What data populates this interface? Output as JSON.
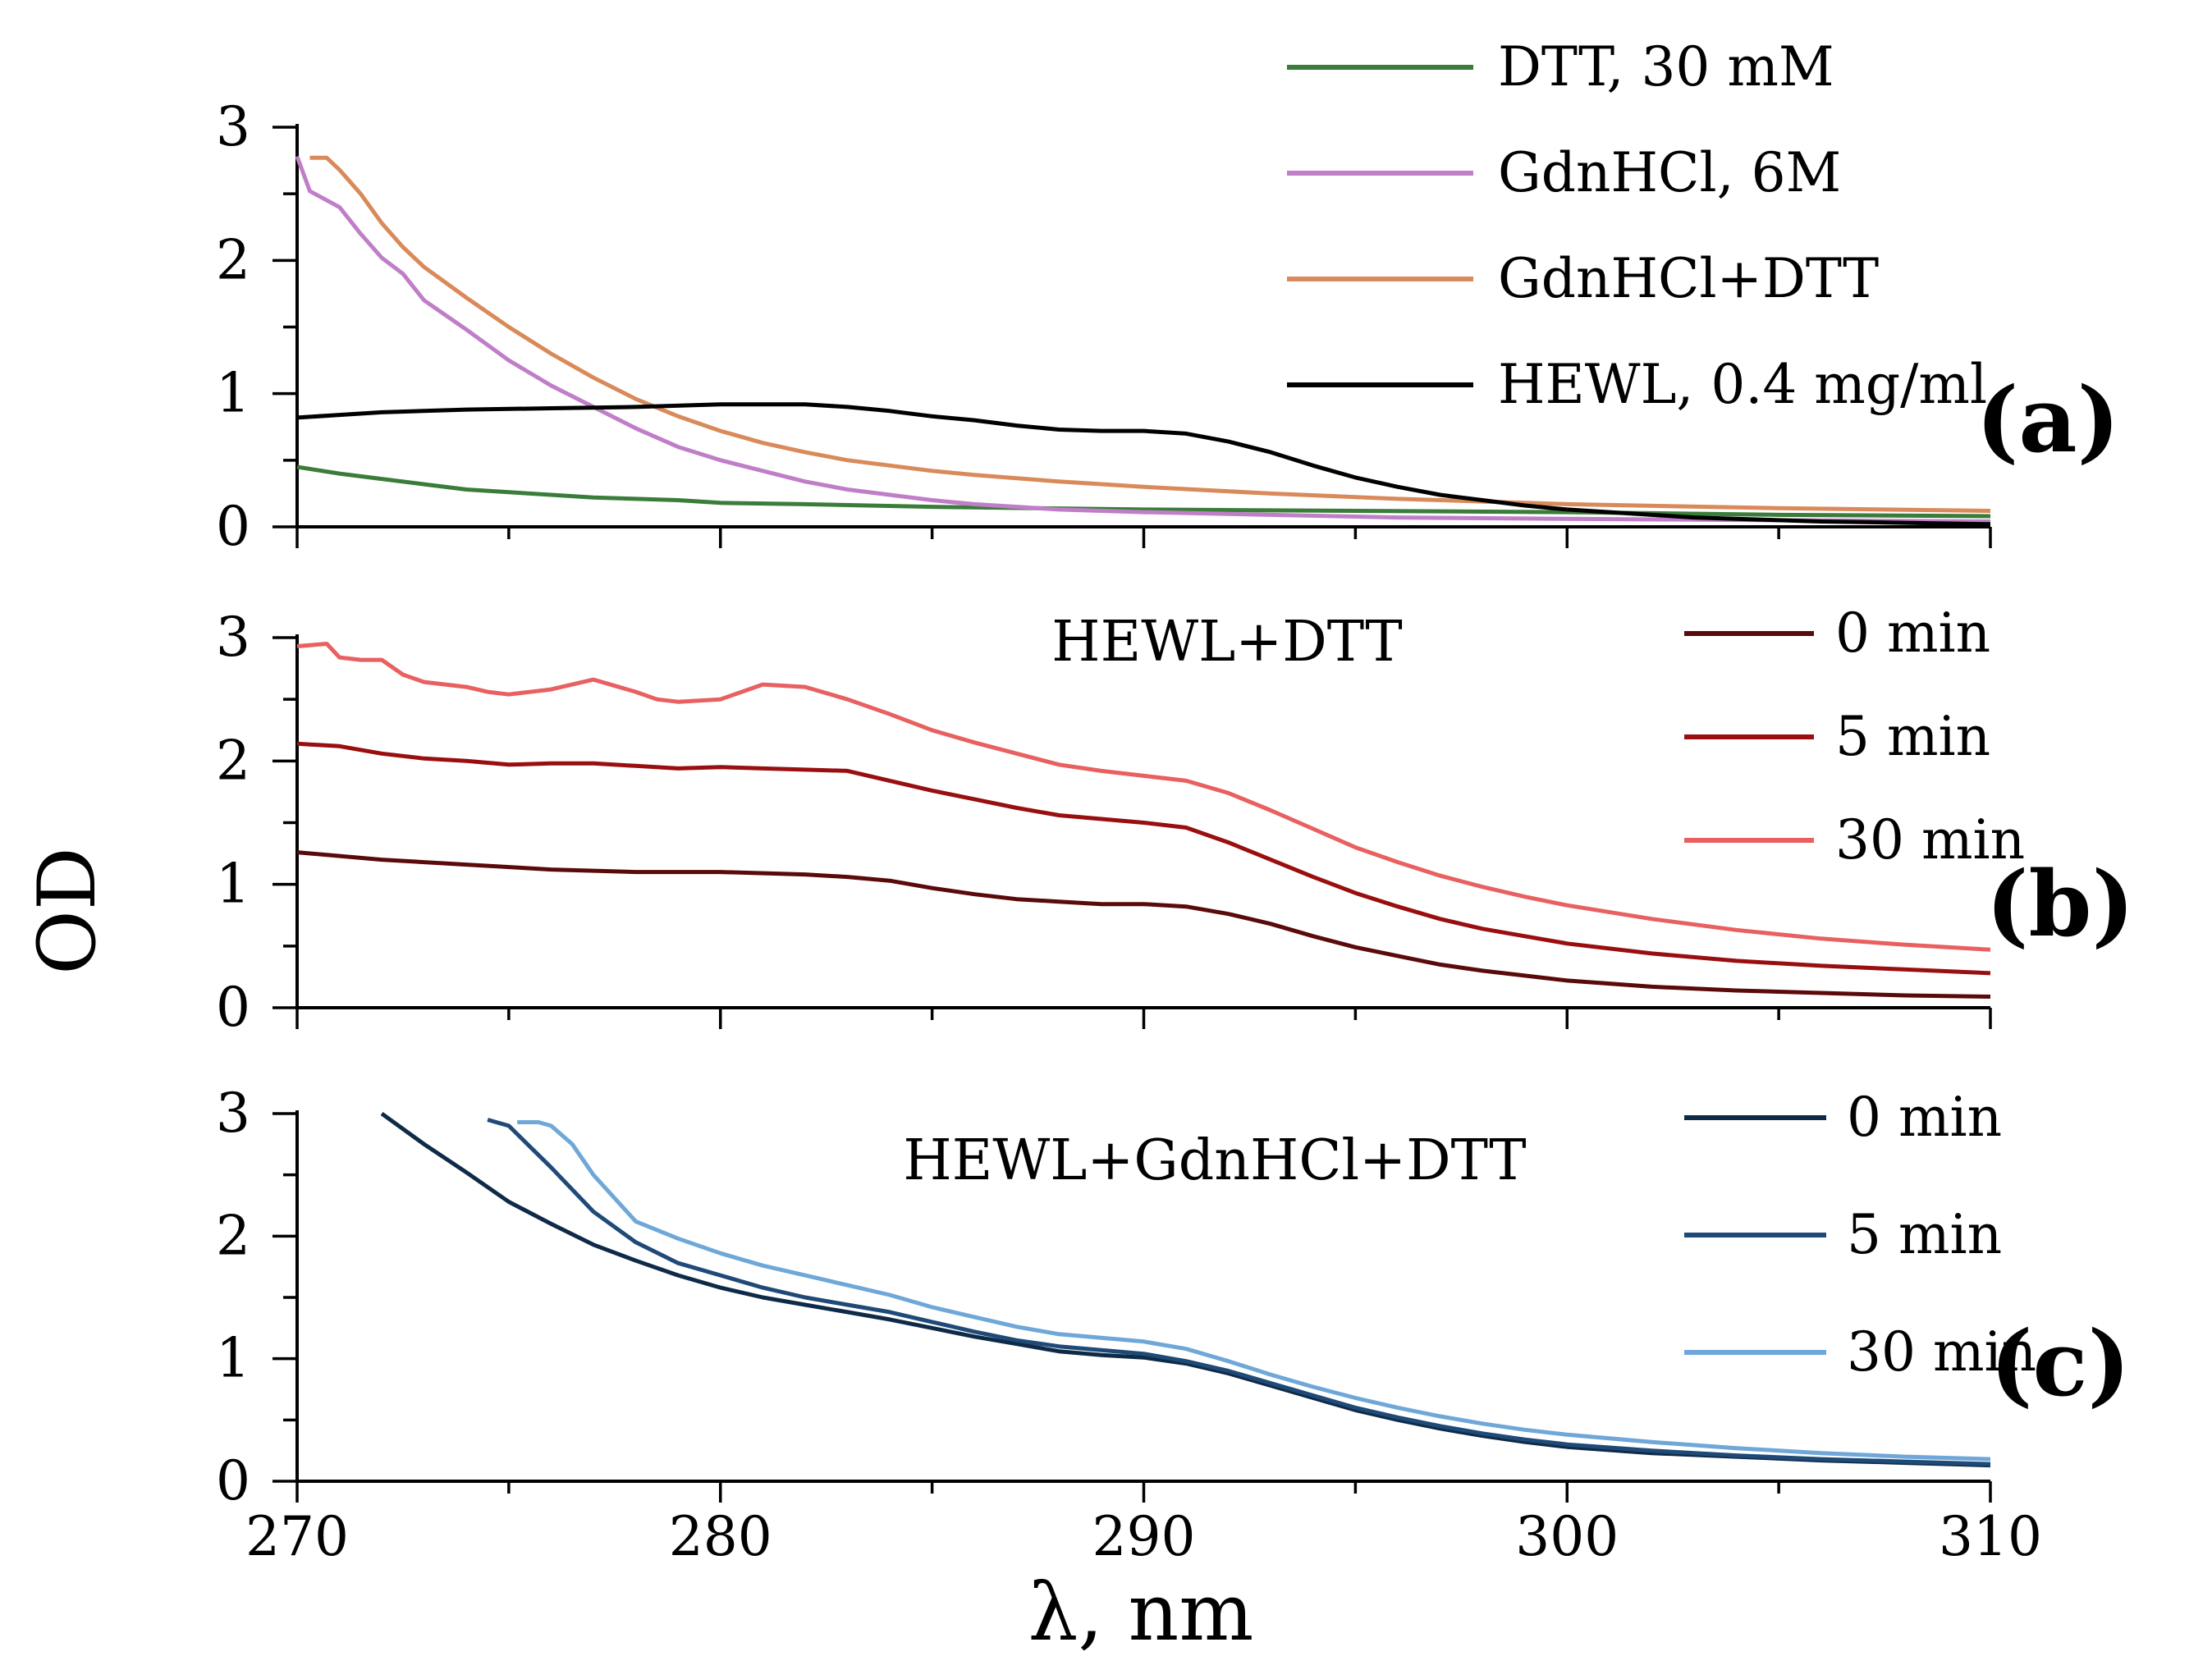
{
  "chart_data": {
    "type": "line",
    "xlabel": "λ, nm",
    "ylabel": "OD",
    "xlim": [
      270,
      310
    ],
    "x_ticks": [
      "270",
      "280",
      "290",
      "300",
      "310"
    ],
    "panels": [
      {
        "id": "a",
        "tag": "(a)",
        "annotation": "",
        "ylim": [
          0,
          3
        ],
        "y_ticks": [
          "0",
          "1",
          "2",
          "3"
        ],
        "legend_position": "top-right",
        "series": [
          {
            "name": "DTT, 30 mM",
            "color": "#3a7d3a",
            "x": [
              270,
              271,
              272,
              273,
              274,
              275,
              276,
              277,
              278,
              279,
              280,
              282,
              285,
              290,
              295,
              300,
              305,
              310
            ],
            "y": [
              0.45,
              0.4,
              0.36,
              0.32,
              0.28,
              0.26,
              0.24,
              0.22,
              0.21,
              0.2,
              0.18,
              0.17,
              0.15,
              0.13,
              0.12,
              0.11,
              0.09,
              0.08
            ]
          },
          {
            "name": "GdnHCl, 6M",
            "color": "#c07ec8",
            "x": [
              270,
              270.3,
              271,
              271.5,
              272,
              272.5,
              273,
              274,
              275,
              276,
              277,
              278,
              279,
              280,
              281,
              282,
              283,
              284,
              285,
              286,
              288,
              290,
              293,
              296,
              300,
              305,
              310
            ],
            "y": [
              2.78,
              2.52,
              2.4,
              2.2,
              2.02,
              1.9,
              1.7,
              1.48,
              1.25,
              1.06,
              0.9,
              0.74,
              0.6,
              0.5,
              0.42,
              0.34,
              0.28,
              0.24,
              0.2,
              0.17,
              0.13,
              0.11,
              0.09,
              0.07,
              0.06,
              0.05,
              0.04
            ]
          },
          {
            "name": "GdnHCl+DTT",
            "color": "#d98a5a",
            "x": [
              270.3,
              270.7,
              271,
              271.5,
              272,
              272.5,
              273,
              274,
              275,
              276,
              277,
              278,
              279,
              280,
              281,
              282,
              283,
              284,
              285,
              286,
              288,
              290,
              293,
              296,
              300,
              305,
              310
            ],
            "y": [
              2.77,
              2.77,
              2.68,
              2.5,
              2.28,
              2.1,
              1.95,
              1.72,
              1.5,
              1.3,
              1.12,
              0.96,
              0.83,
              0.72,
              0.63,
              0.56,
              0.5,
              0.46,
              0.42,
              0.39,
              0.34,
              0.3,
              0.25,
              0.21,
              0.17,
              0.14,
              0.12
            ]
          },
          {
            "name": "HEWL, 0.4 mg/ml",
            "color": "#000000",
            "x": [
              270,
              271,
              272,
              274,
              276,
              278,
              280,
              281,
              282,
              283,
              284,
              285,
              286,
              287,
              288,
              289,
              290,
              291,
              292,
              293,
              294,
              295,
              296,
              297,
              298,
              299,
              300,
              301,
              302,
              303,
              304,
              306,
              308,
              310
            ],
            "y": [
              0.82,
              0.84,
              0.86,
              0.88,
              0.89,
              0.9,
              0.92,
              0.92,
              0.92,
              0.9,
              0.87,
              0.83,
              0.8,
              0.76,
              0.73,
              0.72,
              0.72,
              0.7,
              0.64,
              0.56,
              0.46,
              0.37,
              0.3,
              0.24,
              0.2,
              0.16,
              0.13,
              0.11,
              0.09,
              0.07,
              0.06,
              0.04,
              0.03,
              0.02
            ]
          }
        ]
      },
      {
        "id": "b",
        "tag": "(b)",
        "annotation": "HEWL+DTT",
        "ylim": [
          0,
          3
        ],
        "y_ticks": [
          "0",
          "1",
          "2",
          "3"
        ],
        "legend_position": "top-right",
        "series": [
          {
            "name": "0 min",
            "color": "#5a0a0a",
            "x": [
              270,
              272,
              274,
              276,
              278,
              280,
              282,
              283,
              284,
              285,
              286,
              287,
              288,
              289,
              290,
              291,
              292,
              293,
              294,
              295,
              296,
              297,
              298,
              299,
              300,
              302,
              304,
              306,
              308,
              310
            ],
            "y": [
              1.26,
              1.2,
              1.16,
              1.12,
              1.1,
              1.1,
              1.08,
              1.06,
              1.03,
              0.97,
              0.92,
              0.88,
              0.86,
              0.84,
              0.84,
              0.82,
              0.76,
              0.68,
              0.58,
              0.49,
              0.42,
              0.35,
              0.3,
              0.26,
              0.22,
              0.17,
              0.14,
              0.12,
              0.1,
              0.09
            ]
          },
          {
            "name": "5 min",
            "color": "#990f0f",
            "x": [
              270,
              271,
              272,
              273,
              274,
              275,
              276,
              277,
              278,
              279,
              280,
              281,
              282,
              283,
              284,
              285,
              286,
              287,
              288,
              289,
              290,
              291,
              292,
              293,
              294,
              295,
              296,
              297,
              298,
              299,
              300,
              302,
              304,
              306,
              308,
              310
            ],
            "y": [
              2.14,
              2.12,
              2.06,
              2.02,
              2.0,
              1.97,
              1.98,
              1.98,
              1.96,
              1.94,
              1.95,
              1.94,
              1.93,
              1.92,
              1.84,
              1.76,
              1.69,
              1.62,
              1.56,
              1.53,
              1.5,
              1.46,
              1.34,
              1.2,
              1.06,
              0.93,
              0.82,
              0.72,
              0.64,
              0.58,
              0.52,
              0.44,
              0.38,
              0.34,
              0.31,
              0.28
            ]
          },
          {
            "name": "30 min",
            "color": "#e86060",
            "x": [
              270,
              270.7,
              271,
              271.5,
              272,
              272.5,
              273,
              274,
              274.5,
              275,
              276,
              277,
              278,
              278.5,
              279,
              280,
              281,
              282,
              283,
              284,
              285,
              286,
              287,
              288,
              289,
              290,
              291,
              292,
              293,
              294,
              295,
              296,
              297,
              298,
              299,
              300,
              302,
              304,
              306,
              308,
              310
            ],
            "y": [
              2.93,
              2.95,
              2.84,
              2.82,
              2.82,
              2.7,
              2.64,
              2.6,
              2.56,
              2.54,
              2.58,
              2.66,
              2.56,
              2.5,
              2.48,
              2.5,
              2.62,
              2.6,
              2.5,
              2.38,
              2.25,
              2.15,
              2.06,
              1.97,
              1.92,
              1.88,
              1.84,
              1.74,
              1.6,
              1.45,
              1.3,
              1.18,
              1.07,
              0.98,
              0.9,
              0.83,
              0.72,
              0.63,
              0.56,
              0.51,
              0.47
            ]
          }
        ]
      },
      {
        "id": "c",
        "tag": "(c)",
        "annotation": "HEWL+GdnHCl+DTT",
        "ylim": [
          0,
          3
        ],
        "y_ticks": [
          "0",
          "1",
          "2",
          "3"
        ],
        "legend_position": "top-right",
        "series": [
          {
            "name": "0 min",
            "color": "#0e2a47",
            "x": [
              272,
              273,
              274,
              275,
              276,
              277,
              278,
              279,
              280,
              281,
              282,
              283,
              284,
              285,
              286,
              287,
              288,
              289,
              290,
              291,
              292,
              293,
              294,
              295,
              296,
              297,
              298,
              299,
              300,
              302,
              304,
              306,
              308,
              310
            ],
            "y": [
              3.0,
              2.75,
              2.52,
              2.28,
              2.1,
              1.93,
              1.8,
              1.68,
              1.58,
              1.5,
              1.44,
              1.38,
              1.32,
              1.25,
              1.18,
              1.12,
              1.06,
              1.03,
              1.01,
              0.96,
              0.88,
              0.78,
              0.68,
              0.58,
              0.5,
              0.43,
              0.37,
              0.32,
              0.28,
              0.23,
              0.2,
              0.17,
              0.15,
              0.13
            ]
          },
          {
            "name": "5 min",
            "color": "#1f4a78",
            "x": [
              274.5,
              275,
              276,
              277,
              278,
              279,
              280,
              281,
              282,
              283,
              284,
              285,
              286,
              287,
              288,
              289,
              290,
              291,
              292,
              293,
              294,
              295,
              296,
              297,
              298,
              299,
              300,
              302,
              304,
              306,
              308,
              310
            ],
            "y": [
              2.95,
              2.9,
              2.56,
              2.2,
              1.95,
              1.78,
              1.68,
              1.58,
              1.5,
              1.44,
              1.38,
              1.3,
              1.22,
              1.15,
              1.1,
              1.07,
              1.04,
              0.98,
              0.9,
              0.8,
              0.7,
              0.6,
              0.52,
              0.45,
              0.39,
              0.34,
              0.3,
              0.25,
              0.21,
              0.18,
              0.16,
              0.14
            ]
          },
          {
            "name": "30 min",
            "color": "#6ea7d8",
            "x": [
              275.2,
              275.7,
              276,
              276.5,
              277,
              278,
              279,
              280,
              281,
              282,
              283,
              284,
              285,
              286,
              287,
              288,
              289,
              290,
              291,
              292,
              293,
              294,
              295,
              296,
              297,
              298,
              299,
              300,
              302,
              304,
              306,
              308,
              310
            ],
            "y": [
              2.93,
              2.93,
              2.9,
              2.75,
              2.5,
              2.12,
              1.98,
              1.86,
              1.76,
              1.68,
              1.6,
              1.52,
              1.42,
              1.34,
              1.26,
              1.2,
              1.17,
              1.14,
              1.08,
              0.98,
              0.87,
              0.77,
              0.68,
              0.6,
              0.53,
              0.47,
              0.42,
              0.38,
              0.32,
              0.27,
              0.23,
              0.2,
              0.18
            ]
          }
        ]
      }
    ]
  }
}
